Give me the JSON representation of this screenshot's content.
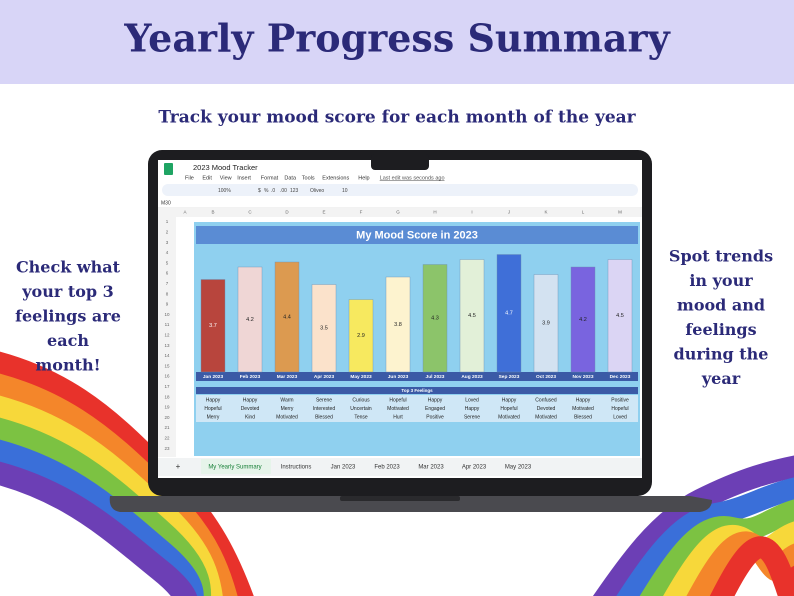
{
  "header": {
    "title": "Yearly Progress Summary",
    "subtitle": "Track your mood score for each month of the year"
  },
  "left_note": [
    "Check what",
    "your top 3",
    "feelings are",
    "each",
    "month!"
  ],
  "right_note": [
    "Spot trends",
    "in your",
    "mood and",
    "feelings",
    "during the",
    "year"
  ],
  "spreadsheet": {
    "file_name": "2023 Mood Tracker",
    "menu": [
      "File",
      "Edit",
      "View",
      "Insert",
      "Format",
      "Data",
      "Tools",
      "Extensions",
      "Help"
    ],
    "last_edit": "Last edit was seconds ago",
    "toolbar": [
      "100%",
      "$",
      "%",
      ".0",
      ".00",
      "123",
      "Oliveo",
      "10"
    ],
    "cell_ref": "M30",
    "columns": [
      "A",
      "B",
      "C",
      "D",
      "E",
      "F",
      "G",
      "H",
      "I",
      "J",
      "K",
      "L",
      "M"
    ],
    "rows": [
      1,
      2,
      3,
      4,
      5,
      6,
      7,
      8,
      9,
      10,
      11,
      12,
      13,
      14,
      15,
      16,
      17,
      18,
      19,
      20,
      21,
      22,
      23
    ],
    "tabs": [
      "+",
      "My Yearly Summary",
      "Instructions",
      "Jan 2023",
      "Feb 2023",
      "Mar 2023",
      "Apr 2023",
      "May 2023"
    ]
  },
  "chart_data": {
    "type": "bar",
    "title": "My Mood Score in 2023",
    "categories": [
      "Jan 2023",
      "Feb 2023",
      "Mar 2023",
      "Apr 2023",
      "May 2023",
      "Jun 2023",
      "Jul 2023",
      "Aug 2023",
      "Sep 2023",
      "Oct 2023",
      "Nov 2023",
      "Dec 2023"
    ],
    "values": [
      3.7,
      4.2,
      4.4,
      3.5,
      2.9,
      3.8,
      4.3,
      4.5,
      4.7,
      3.9,
      4.2,
      4.5
    ],
    "colors": [
      "#b8453d",
      "#efd6d5",
      "#dc9a50",
      "#fbe2cb",
      "#f7e95f",
      "#fdf3cf",
      "#8cc46a",
      "#e2f0d8",
      "#3f6fd8",
      "#d3e2f1",
      "#7964df",
      "#dbd5f4"
    ],
    "ylim": [
      0,
      5
    ]
  },
  "feelings": {
    "title": "Top 3 Feelings",
    "rows": [
      [
        "Happy",
        "Happy",
        "Warm",
        "Serene",
        "Curious",
        "Hopeful",
        "Happy",
        "Loved",
        "Happy",
        "Confused",
        "Happy",
        "Positive"
      ],
      [
        "Hopeful",
        "Devoted",
        "Merry",
        "Interested",
        "Uncertain",
        "Motivated",
        "Engaged",
        "Happy",
        "Hopeful",
        "Devoted",
        "Motivated",
        "Hopeful"
      ],
      [
        "Merry",
        "Kind",
        "Motivated",
        "Blessed",
        "Tense",
        "Hurt",
        "Positive",
        "Serene",
        "Motivated",
        "Motivated",
        "Blessed",
        "Loved"
      ]
    ]
  }
}
